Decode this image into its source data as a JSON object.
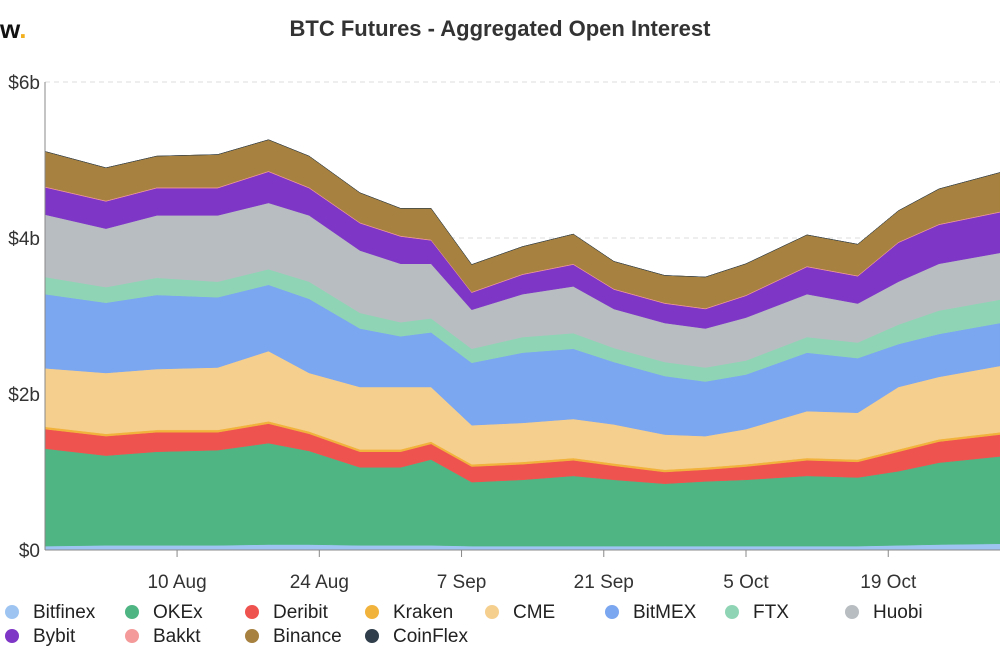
{
  "header": {
    "logo_text": "w",
    "title": "BTC Futures - Aggregated Open Interest"
  },
  "chart_data": {
    "type": "area",
    "stacked": true,
    "title": "BTC Futures - Aggregated Open Interest",
    "xlabel": "",
    "ylabel": "",
    "ylim": [
      0,
      6
    ],
    "y_ticks": [
      0,
      2,
      4,
      6
    ],
    "y_tick_labels": [
      "$0",
      "$2b",
      "$4b",
      "$6b"
    ],
    "x_range": [
      "2020-07-28",
      "2020-10-30"
    ],
    "x_ticks": [
      "2020-08-10",
      "2020-08-24",
      "2020-09-07",
      "2020-09-21",
      "2020-10-05",
      "2020-10-19"
    ],
    "x_tick_labels": [
      "10 Aug",
      "24 Aug",
      "7 Sep",
      "21 Sep",
      "5 Oct",
      "19 Oct"
    ],
    "grid": true,
    "legend_position": "bottom",
    "x": [
      "2020-07-28",
      "2020-08-03",
      "2020-08-08",
      "2020-08-14",
      "2020-08-19",
      "2020-08-23",
      "2020-08-28",
      "2020-09-01",
      "2020-09-04",
      "2020-09-08",
      "2020-09-13",
      "2020-09-18",
      "2020-09-22",
      "2020-09-27",
      "2020-10-01",
      "2020-10-05",
      "2020-10-11",
      "2020-10-16",
      "2020-10-20",
      "2020-10-24",
      "2020-10-30"
    ],
    "series": [
      {
        "name": "Bitfinex",
        "color": "#9ec5f2",
        "values": [
          0.05,
          0.06,
          0.06,
          0.06,
          0.07,
          0.07,
          0.06,
          0.06,
          0.06,
          0.05,
          0.05,
          0.05,
          0.05,
          0.05,
          0.05,
          0.05,
          0.05,
          0.05,
          0.06,
          0.07,
          0.08
        ]
      },
      {
        "name": "OKEx",
        "color": "#4fb583",
        "values": [
          1.25,
          1.15,
          1.2,
          1.22,
          1.3,
          1.2,
          1.0,
          1.0,
          1.1,
          0.82,
          0.85,
          0.9,
          0.85,
          0.8,
          0.83,
          0.85,
          0.9,
          0.88,
          0.95,
          1.05,
          1.12
        ]
      },
      {
        "name": "Deribit",
        "color": "#ef5350",
        "values": [
          0.25,
          0.25,
          0.25,
          0.23,
          0.25,
          0.22,
          0.2,
          0.2,
          0.2,
          0.2,
          0.2,
          0.2,
          0.18,
          0.15,
          0.15,
          0.17,
          0.2,
          0.2,
          0.25,
          0.27,
          0.28
        ]
      },
      {
        "name": "Kraken",
        "color": "#f2b33d",
        "values": [
          0.03,
          0.03,
          0.03,
          0.03,
          0.03,
          0.03,
          0.03,
          0.03,
          0.03,
          0.03,
          0.03,
          0.03,
          0.03,
          0.03,
          0.03,
          0.03,
          0.03,
          0.03,
          0.03,
          0.03,
          0.03
        ]
      },
      {
        "name": "CME",
        "color": "#f5cf8e",
        "values": [
          0.75,
          0.78,
          0.78,
          0.8,
          0.9,
          0.75,
          0.8,
          0.8,
          0.7,
          0.5,
          0.5,
          0.5,
          0.5,
          0.45,
          0.4,
          0.45,
          0.6,
          0.6,
          0.8,
          0.8,
          0.85
        ]
      },
      {
        "name": "BitMEX",
        "color": "#7ba6f0",
        "values": [
          0.95,
          0.9,
          0.95,
          0.9,
          0.85,
          0.95,
          0.75,
          0.65,
          0.7,
          0.8,
          0.9,
          0.9,
          0.8,
          0.75,
          0.7,
          0.7,
          0.75,
          0.7,
          0.55,
          0.55,
          0.55
        ]
      },
      {
        "name": "FTX",
        "color": "#8fd5b5",
        "values": [
          0.22,
          0.2,
          0.22,
          0.2,
          0.2,
          0.22,
          0.2,
          0.18,
          0.18,
          0.18,
          0.2,
          0.2,
          0.18,
          0.18,
          0.18,
          0.18,
          0.2,
          0.2,
          0.25,
          0.3,
          0.3
        ]
      },
      {
        "name": "Huobi",
        "color": "#b8bdc2",
        "values": [
          0.8,
          0.75,
          0.8,
          0.85,
          0.85,
          0.85,
          0.8,
          0.75,
          0.7,
          0.5,
          0.55,
          0.6,
          0.5,
          0.5,
          0.5,
          0.55,
          0.55,
          0.5,
          0.55,
          0.6,
          0.6
        ]
      },
      {
        "name": "Bybit",
        "color": "#7e36c6",
        "values": [
          0.35,
          0.35,
          0.35,
          0.35,
          0.4,
          0.35,
          0.35,
          0.35,
          0.3,
          0.22,
          0.25,
          0.28,
          0.25,
          0.25,
          0.25,
          0.28,
          0.35,
          0.35,
          0.5,
          0.5,
          0.52
        ]
      },
      {
        "name": "Bakkt",
        "color": "#f49a9a",
        "values": [
          0.01,
          0.01,
          0.01,
          0.01,
          0.01,
          0.01,
          0.01,
          0.01,
          0.01,
          0.01,
          0.01,
          0.01,
          0.01,
          0.01,
          0.01,
          0.01,
          0.01,
          0.01,
          0.01,
          0.01,
          0.01
        ]
      },
      {
        "name": "Binance",
        "color": "#a6813f",
        "values": [
          0.45,
          0.42,
          0.4,
          0.42,
          0.4,
          0.4,
          0.38,
          0.35,
          0.4,
          0.35,
          0.35,
          0.38,
          0.35,
          0.35,
          0.4,
          0.4,
          0.4,
          0.4,
          0.4,
          0.45,
          0.5
        ]
      },
      {
        "name": "CoinFlex",
        "color": "#2f3e4a",
        "values": [
          0,
          0,
          0,
          0,
          0,
          0,
          0,
          0,
          0,
          0,
          0,
          0,
          0,
          0,
          0,
          0,
          0,
          0,
          0,
          0,
          0
        ]
      }
    ]
  }
}
